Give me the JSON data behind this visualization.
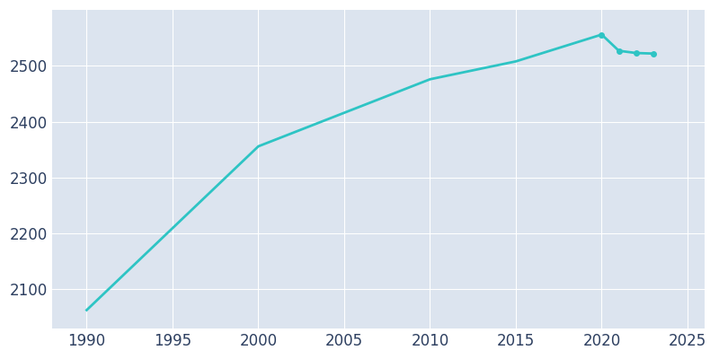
{
  "years": [
    1990,
    2000,
    2010,
    2015,
    2020,
    2021,
    2022,
    2023
  ],
  "population": [
    2063,
    2356,
    2476,
    2508,
    2556,
    2527,
    2523,
    2522
  ],
  "line_color": "#2EC4C4",
  "marker_years": [
    2020,
    2021,
    2022,
    2023
  ],
  "marker_color": "#2EC4C4",
  "plot_bg_color": "#DCE4EF",
  "fig_bg_color": "#FFFFFF",
  "grid_color": "#FFFFFF",
  "xlim": [
    1988,
    2026
  ],
  "ylim": [
    2030,
    2600
  ],
  "yticks": [
    2100,
    2200,
    2300,
    2400,
    2500
  ],
  "xticks": [
    1990,
    1995,
    2000,
    2005,
    2010,
    2015,
    2020,
    2025
  ],
  "tick_color": "#2D3F60",
  "tick_fontsize": 12
}
